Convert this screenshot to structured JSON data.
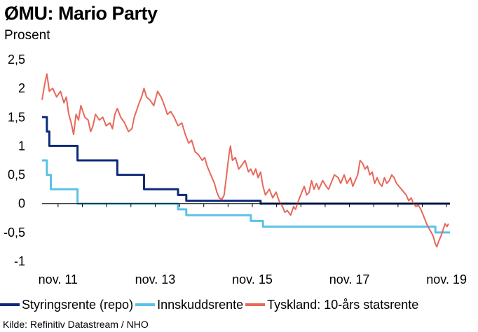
{
  "title": "ØMU: Mario Party",
  "unit_label": "Prosent",
  "source": "Kilde: Refinitiv Datastream / NHO",
  "colors": {
    "styringsrente": "#0d2a7a",
    "innskuddsrente": "#5bc2e7",
    "tyskland": "#e8685a",
    "axis": "#000000",
    "grid": "#cccccc"
  },
  "chart_data": {
    "type": "line",
    "title": "ØMU: Mario Party",
    "ylabel": "Prosent",
    "xlabel": "",
    "xlim": [
      2011.5,
      2019.9
    ],
    "ylim": [
      -1,
      2.5
    ],
    "yticks": [
      2.5,
      2,
      1.5,
      1,
      0.5,
      0,
      -0.5,
      -1
    ],
    "ytick_labels": [
      "2,5",
      "2",
      "1,5",
      "1",
      "0,5",
      "0",
      "-0,5",
      "-1"
    ],
    "xticks": [
      2011.83,
      2013.83,
      2015.83,
      2017.83,
      2019.83
    ],
    "xtick_labels": [
      "nov. 11",
      "nov. 13",
      "nov. 15",
      "nov. 17",
      "nov. 19"
    ],
    "grid": false,
    "legend_position": "bottom",
    "series": [
      {
        "name": "Styringsrente (repo)",
        "step": true,
        "points": [
          [
            2011.5,
            1.5
          ],
          [
            2011.6,
            1.25
          ],
          [
            2011.62,
            1.25
          ],
          [
            2011.65,
            1.0
          ],
          [
            2012.2,
            1.0
          ],
          [
            2012.23,
            0.75
          ],
          [
            2013.0,
            0.75
          ],
          [
            2013.05,
            0.5
          ],
          [
            2013.58,
            0.5
          ],
          [
            2013.6,
            0.25
          ],
          [
            2014.28,
            0.25
          ],
          [
            2014.3,
            0.15
          ],
          [
            2014.45,
            0.15
          ],
          [
            2014.47,
            0.05
          ],
          [
            2015.95,
            0.05
          ],
          [
            2016.0,
            0.0
          ],
          [
            2019.9,
            0.0
          ]
        ]
      },
      {
        "name": "Innskuddsrente",
        "step": true,
        "points": [
          [
            2011.5,
            0.75
          ],
          [
            2011.6,
            0.5
          ],
          [
            2011.65,
            0.5
          ],
          [
            2011.68,
            0.25
          ],
          [
            2012.2,
            0.25
          ],
          [
            2012.23,
            0.0
          ],
          [
            2014.28,
            0.0
          ],
          [
            2014.3,
            -0.1
          ],
          [
            2014.45,
            -0.1
          ],
          [
            2014.47,
            -0.2
          ],
          [
            2015.75,
            -0.2
          ],
          [
            2015.8,
            -0.3
          ],
          [
            2016.0,
            -0.3
          ],
          [
            2016.05,
            -0.4
          ],
          [
            2019.55,
            -0.4
          ],
          [
            2019.6,
            -0.5
          ],
          [
            2019.9,
            -0.5
          ]
        ]
      },
      {
        "name": "Tyskland: 10-års statsrente",
        "step": false,
        "points": [
          [
            2011.5,
            1.8
          ],
          [
            2011.56,
            2.1
          ],
          [
            2011.6,
            2.25
          ],
          [
            2011.65,
            1.95
          ],
          [
            2011.72,
            2.0
          ],
          [
            2011.8,
            1.85
          ],
          [
            2011.88,
            1.95
          ],
          [
            2011.95,
            1.75
          ],
          [
            2012.0,
            1.85
          ],
          [
            2012.05,
            1.55
          ],
          [
            2012.1,
            1.4
          ],
          [
            2012.15,
            1.2
          ],
          [
            2012.2,
            1.55
          ],
          [
            2012.25,
            1.45
          ],
          [
            2012.3,
            1.7
          ],
          [
            2012.38,
            1.5
          ],
          [
            2012.45,
            1.45
          ],
          [
            2012.5,
            1.25
          ],
          [
            2012.55,
            1.35
          ],
          [
            2012.6,
            1.55
          ],
          [
            2012.68,
            1.45
          ],
          [
            2012.75,
            1.5
          ],
          [
            2012.82,
            1.35
          ],
          [
            2012.9,
            1.4
          ],
          [
            2012.95,
            1.3
          ],
          [
            2013.0,
            1.55
          ],
          [
            2013.05,
            1.65
          ],
          [
            2013.12,
            1.5
          ],
          [
            2013.2,
            1.4
          ],
          [
            2013.28,
            1.25
          ],
          [
            2013.35,
            1.3
          ],
          [
            2013.4,
            1.5
          ],
          [
            2013.48,
            1.7
          ],
          [
            2013.55,
            1.85
          ],
          [
            2013.6,
            2.0
          ],
          [
            2013.65,
            1.85
          ],
          [
            2013.72,
            1.8
          ],
          [
            2013.8,
            1.7
          ],
          [
            2013.88,
            1.95
          ],
          [
            2013.95,
            1.85
          ],
          [
            2014.0,
            1.75
          ],
          [
            2014.08,
            1.55
          ],
          [
            2014.15,
            1.6
          ],
          [
            2014.22,
            1.5
          ],
          [
            2014.3,
            1.35
          ],
          [
            2014.38,
            1.4
          ],
          [
            2014.45,
            1.2
          ],
          [
            2014.52,
            1.05
          ],
          [
            2014.58,
            1.1
          ],
          [
            2014.65,
            0.9
          ],
          [
            2014.72,
            0.85
          ],
          [
            2014.8,
            0.75
          ],
          [
            2014.85,
            0.8
          ],
          [
            2014.9,
            0.65
          ],
          [
            2014.95,
            0.55
          ],
          [
            2015.0,
            0.45
          ],
          [
            2015.05,
            0.35
          ],
          [
            2015.1,
            0.2
          ],
          [
            2015.15,
            0.1
          ],
          [
            2015.2,
            0.07
          ],
          [
            2015.25,
            0.15
          ],
          [
            2015.3,
            0.5
          ],
          [
            2015.35,
            0.85
          ],
          [
            2015.38,
            1.0
          ],
          [
            2015.42,
            0.75
          ],
          [
            2015.48,
            0.8
          ],
          [
            2015.55,
            0.6
          ],
          [
            2015.6,
            0.65
          ],
          [
            2015.68,
            0.75
          ],
          [
            2015.75,
            0.55
          ],
          [
            2015.8,
            0.6
          ],
          [
            2015.85,
            0.5
          ],
          [
            2015.9,
            0.6
          ],
          [
            2015.95,
            0.45
          ],
          [
            2016.0,
            0.55
          ],
          [
            2016.05,
            0.3
          ],
          [
            2016.1,
            0.15
          ],
          [
            2016.18,
            0.25
          ],
          [
            2016.25,
            0.1
          ],
          [
            2016.32,
            0.2
          ],
          [
            2016.38,
            0.05
          ],
          [
            2016.45,
            -0.05
          ],
          [
            2016.5,
            -0.15
          ],
          [
            2016.55,
            -0.12
          ],
          [
            2016.62,
            -0.2
          ],
          [
            2016.68,
            -0.05
          ],
          [
            2016.72,
            -0.1
          ],
          [
            2016.78,
            0.05
          ],
          [
            2016.85,
            0.2
          ],
          [
            2016.9,
            0.3
          ],
          [
            2016.95,
            0.15
          ],
          [
            2017.0,
            0.2
          ],
          [
            2017.05,
            0.4
          ],
          [
            2017.1,
            0.25
          ],
          [
            2017.15,
            0.35
          ],
          [
            2017.2,
            0.25
          ],
          [
            2017.28,
            0.4
          ],
          [
            2017.35,
            0.3
          ],
          [
            2017.4,
            0.25
          ],
          [
            2017.45,
            0.35
          ],
          [
            2017.52,
            0.5
          ],
          [
            2017.6,
            0.45
          ],
          [
            2017.65,
            0.35
          ],
          [
            2017.72,
            0.5
          ],
          [
            2017.78,
            0.35
          ],
          [
            2017.85,
            0.45
          ],
          [
            2017.9,
            0.3
          ],
          [
            2017.95,
            0.4
          ],
          [
            2018.0,
            0.5
          ],
          [
            2018.05,
            0.75
          ],
          [
            2018.1,
            0.7
          ],
          [
            2018.15,
            0.6
          ],
          [
            2018.2,
            0.65
          ],
          [
            2018.25,
            0.5
          ],
          [
            2018.3,
            0.55
          ],
          [
            2018.35,
            0.35
          ],
          [
            2018.4,
            0.45
          ],
          [
            2018.45,
            0.35
          ],
          [
            2018.5,
            0.3
          ],
          [
            2018.55,
            0.45
          ],
          [
            2018.6,
            0.35
          ],
          [
            2018.65,
            0.4
          ],
          [
            2018.7,
            0.5
          ],
          [
            2018.75,
            0.45
          ],
          [
            2018.8,
            0.35
          ],
          [
            2018.85,
            0.3
          ],
          [
            2018.9,
            0.25
          ],
          [
            2018.95,
            0.2
          ],
          [
            2019.0,
            0.15
          ],
          [
            2019.05,
            0.05
          ],
          [
            2019.1,
            0.1
          ],
          [
            2019.15,
            0.0
          ],
          [
            2019.2,
            -0.05
          ],
          [
            2019.25,
            -0.03
          ],
          [
            2019.3,
            -0.1
          ],
          [
            2019.35,
            -0.2
          ],
          [
            2019.42,
            -0.35
          ],
          [
            2019.48,
            -0.45
          ],
          [
            2019.55,
            -0.55
          ],
          [
            2019.6,
            -0.7
          ],
          [
            2019.63,
            -0.75
          ],
          [
            2019.67,
            -0.65
          ],
          [
            2019.72,
            -0.55
          ],
          [
            2019.76,
            -0.45
          ],
          [
            2019.8,
            -0.35
          ],
          [
            2019.84,
            -0.4
          ],
          [
            2019.87,
            -0.35
          ]
        ]
      }
    ]
  }
}
